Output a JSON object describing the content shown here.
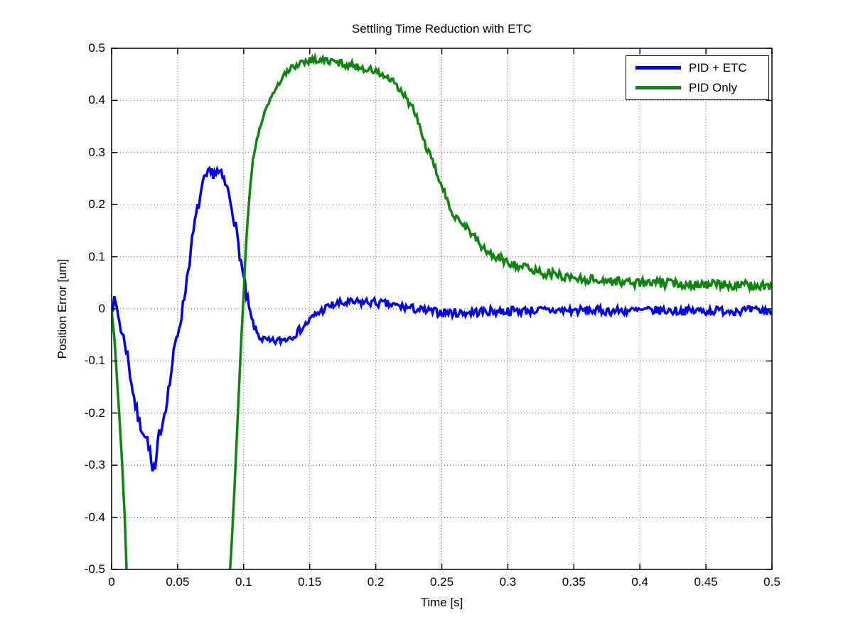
{
  "figure": {
    "background": "#ffffff"
  },
  "chart_data": {
    "type": "line",
    "title": "Settling Time Reduction with ETC",
    "xlabel": "Time [s]",
    "ylabel": "Position Error [um]",
    "xlim": [
      0,
      0.5
    ],
    "ylim": [
      -0.5,
      0.5
    ],
    "grid": "dotted",
    "grid_color": "#707070",
    "axis_color": "#000000",
    "plot_background": "#ffffff",
    "legend": {
      "position": "top-right",
      "border_color": "#000000",
      "background": "#ffffff"
    },
    "xticks": [
      {
        "value": 0.0,
        "label": "0"
      },
      {
        "value": 0.05,
        "label": "0.05"
      },
      {
        "value": 0.1,
        "label": "0.1"
      },
      {
        "value": 0.15,
        "label": "0.15"
      },
      {
        "value": 0.2,
        "label": "0.2"
      },
      {
        "value": 0.25,
        "label": "0.25"
      },
      {
        "value": 0.3,
        "label": "0.3"
      },
      {
        "value": 0.35,
        "label": "0.35"
      },
      {
        "value": 0.4,
        "label": "0.4"
      },
      {
        "value": 0.45,
        "label": "0.45"
      },
      {
        "value": 0.5,
        "label": "0.5"
      }
    ],
    "yticks": [
      {
        "value": -0.5,
        "label": "-0.5"
      },
      {
        "value": -0.4,
        "label": "-0.4"
      },
      {
        "value": -0.3,
        "label": "-0.3"
      },
      {
        "value": -0.2,
        "label": "-0.2"
      },
      {
        "value": -0.1,
        "label": "-0.1"
      },
      {
        "value": 0.0,
        "label": "0"
      },
      {
        "value": 0.1,
        "label": "0.1"
      },
      {
        "value": 0.2,
        "label": "0.2"
      },
      {
        "value": 0.3,
        "label": "0.3"
      },
      {
        "value": 0.4,
        "label": "0.4"
      },
      {
        "value": 0.5,
        "label": "0.5"
      }
    ],
    "series": [
      {
        "name": "PID + ETC",
        "id": "pid-etc",
        "color": "#0000EB",
        "line_width": 3.5,
        "noise_regions": [
          [
            0,
            0.105,
            0.013
          ],
          [
            0.105,
            0.16,
            0.008
          ],
          [
            0.16,
            0.501,
            0.0085
          ]
        ],
        "anchors": [
          [
            0.0,
            0.005
          ],
          [
            0.002,
            0.012
          ],
          [
            0.004,
            0.002
          ],
          [
            0.006,
            -0.025
          ],
          [
            0.008,
            -0.05
          ],
          [
            0.01,
            -0.062
          ],
          [
            0.012,
            -0.09
          ],
          [
            0.014,
            -0.125
          ],
          [
            0.016,
            -0.155
          ],
          [
            0.018,
            -0.185
          ],
          [
            0.02,
            -0.21
          ],
          [
            0.022,
            -0.225
          ],
          [
            0.024,
            -0.232
          ],
          [
            0.026,
            -0.248
          ],
          [
            0.028,
            -0.258
          ],
          [
            0.03,
            -0.295
          ],
          [
            0.031,
            -0.315
          ],
          [
            0.032,
            -0.305
          ],
          [
            0.033,
            -0.32
          ],
          [
            0.034,
            -0.285
          ],
          [
            0.036,
            -0.24
          ],
          [
            0.038,
            -0.222
          ],
          [
            0.04,
            -0.2
          ],
          [
            0.042,
            -0.17
          ],
          [
            0.044,
            -0.143
          ],
          [
            0.046,
            -0.105
          ],
          [
            0.048,
            -0.072
          ],
          [
            0.05,
            -0.048
          ],
          [
            0.052,
            -0.022
          ],
          [
            0.054,
            0.004
          ],
          [
            0.056,
            0.04
          ],
          [
            0.058,
            0.078
          ],
          [
            0.06,
            0.11
          ],
          [
            0.062,
            0.148
          ],
          [
            0.064,
            0.178
          ],
          [
            0.066,
            0.202
          ],
          [
            0.068,
            0.226
          ],
          [
            0.07,
            0.243
          ],
          [
            0.072,
            0.253
          ],
          [
            0.074,
            0.258
          ],
          [
            0.076,
            0.261
          ],
          [
            0.078,
            0.264
          ],
          [
            0.08,
            0.262
          ],
          [
            0.082,
            0.258
          ],
          [
            0.084,
            0.25
          ],
          [
            0.086,
            0.24
          ],
          [
            0.088,
            0.226
          ],
          [
            0.09,
            0.208
          ],
          [
            0.092,
            0.185
          ],
          [
            0.094,
            0.155
          ],
          [
            0.096,
            0.122
          ],
          [
            0.098,
            0.09
          ],
          [
            0.1,
            0.056
          ],
          [
            0.102,
            0.026
          ],
          [
            0.104,
            0.0
          ],
          [
            0.106,
            -0.02
          ],
          [
            0.108,
            -0.035
          ],
          [
            0.11,
            -0.046
          ],
          [
            0.113,
            -0.056
          ],
          [
            0.116,
            -0.06
          ],
          [
            0.12,
            -0.064
          ],
          [
            0.125,
            -0.062
          ],
          [
            0.13,
            -0.059
          ],
          [
            0.135,
            -0.054
          ],
          [
            0.14,
            -0.046
          ],
          [
            0.145,
            -0.035
          ],
          [
            0.15,
            -0.022
          ],
          [
            0.155,
            -0.01
          ],
          [
            0.16,
            -0.002
          ],
          [
            0.165,
            0.005
          ],
          [
            0.17,
            0.009
          ],
          [
            0.178,
            0.011
          ],
          [
            0.186,
            0.012
          ],
          [
            0.195,
            0.013
          ],
          [
            0.205,
            0.01
          ],
          [
            0.215,
            0.006
          ],
          [
            0.225,
            0.002
          ],
          [
            0.235,
            -0.003
          ],
          [
            0.245,
            -0.006
          ],
          [
            0.255,
            -0.007
          ],
          [
            0.265,
            -0.008
          ],
          [
            0.275,
            -0.006
          ],
          [
            0.285,
            -0.005
          ],
          [
            0.3,
            -0.004
          ],
          [
            0.32,
            -0.003
          ],
          [
            0.35,
            -0.003
          ],
          [
            0.38,
            -0.004
          ],
          [
            0.41,
            -0.003
          ],
          [
            0.44,
            -0.004
          ],
          [
            0.47,
            -0.003
          ],
          [
            0.5,
            -0.004
          ]
        ]
      },
      {
        "name": "PID Only",
        "id": "pid-only",
        "color": "#108410",
        "line_width": 3.5,
        "noise_regions": [
          [
            0,
            0.13,
            0.004
          ],
          [
            0.13,
            0.25,
            0.0075
          ],
          [
            0.25,
            0.501,
            0.009
          ]
        ],
        "anchors": [
          [
            0.0,
            0.0
          ],
          [
            0.002,
            -0.055
          ],
          [
            0.004,
            -0.13
          ],
          [
            0.006,
            -0.21
          ],
          [
            0.008,
            -0.3
          ],
          [
            0.01,
            -0.405
          ],
          [
            0.0115,
            -0.51
          ],
          [
            0.013,
            -0.6
          ],
          [
            0.086,
            -0.6
          ],
          [
            0.0885,
            -0.54
          ],
          [
            0.0905,
            -0.47
          ],
          [
            0.092,
            -0.4
          ],
          [
            0.094,
            -0.29
          ],
          [
            0.096,
            -0.175
          ],
          [
            0.098,
            -0.07
          ],
          [
            0.0995,
            0.0
          ],
          [
            0.101,
            0.09
          ],
          [
            0.103,
            0.17
          ],
          [
            0.105,
            0.235
          ],
          [
            0.107,
            0.285
          ],
          [
            0.11,
            0.325
          ],
          [
            0.113,
            0.355
          ],
          [
            0.116,
            0.378
          ],
          [
            0.12,
            0.402
          ],
          [
            0.125,
            0.426
          ],
          [
            0.13,
            0.445
          ],
          [
            0.135,
            0.459
          ],
          [
            0.14,
            0.469
          ],
          [
            0.145,
            0.475
          ],
          [
            0.15,
            0.478
          ],
          [
            0.155,
            0.478
          ],
          [
            0.16,
            0.477
          ],
          [
            0.168,
            0.474
          ],
          [
            0.176,
            0.47
          ],
          [
            0.184,
            0.466
          ],
          [
            0.192,
            0.461
          ],
          [
            0.2,
            0.455
          ],
          [
            0.206,
            0.447
          ],
          [
            0.212,
            0.437
          ],
          [
            0.218,
            0.42
          ],
          [
            0.224,
            0.4
          ],
          [
            0.228,
            0.385
          ],
          [
            0.232,
            0.36
          ],
          [
            0.236,
            0.325
          ],
          [
            0.24,
            0.3
          ],
          [
            0.244,
            0.275
          ],
          [
            0.248,
            0.25
          ],
          [
            0.252,
            0.22
          ],
          [
            0.256,
            0.195
          ],
          [
            0.26,
            0.18
          ],
          [
            0.264,
            0.17
          ],
          [
            0.268,
            0.158
          ],
          [
            0.272,
            0.148
          ],
          [
            0.276,
            0.133
          ],
          [
            0.28,
            0.12
          ],
          [
            0.284,
            0.11
          ],
          [
            0.288,
            0.103
          ],
          [
            0.292,
            0.098
          ],
          [
            0.296,
            0.094
          ],
          [
            0.3,
            0.09
          ],
          [
            0.31,
            0.082
          ],
          [
            0.318,
            0.075
          ],
          [
            0.326,
            0.07
          ],
          [
            0.335,
            0.066
          ],
          [
            0.345,
            0.062
          ],
          [
            0.355,
            0.058
          ],
          [
            0.37,
            0.055
          ],
          [
            0.385,
            0.052
          ],
          [
            0.4,
            0.05
          ],
          [
            0.42,
            0.049
          ],
          [
            0.44,
            0.048
          ],
          [
            0.46,
            0.046
          ],
          [
            0.48,
            0.045
          ],
          [
            0.5,
            0.044
          ]
        ]
      }
    ]
  }
}
